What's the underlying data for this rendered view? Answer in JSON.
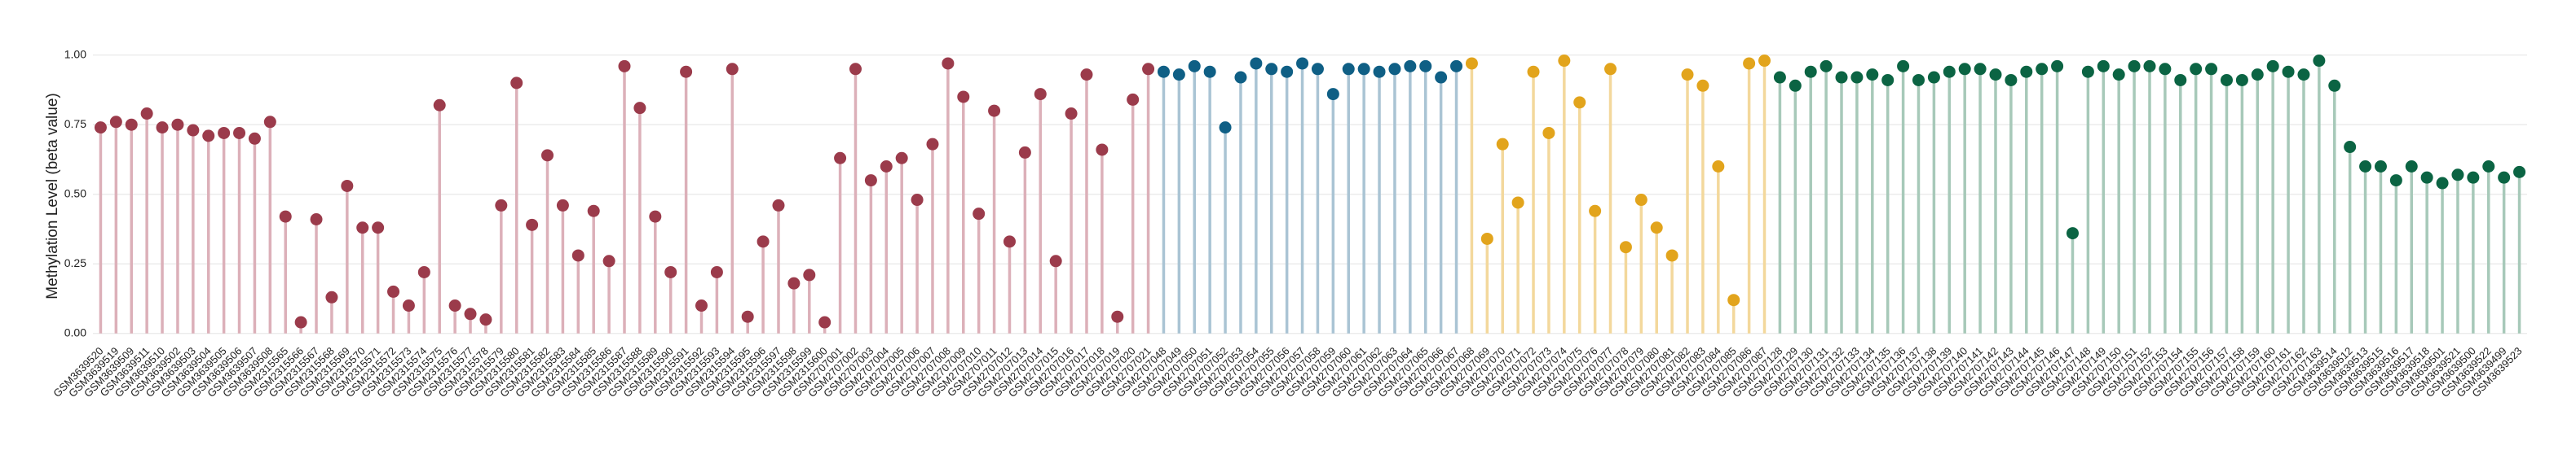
{
  "chart_data": {
    "type": "lollipop",
    "y_label": "Methylation Level (beta value)",
    "ylim": [
      -0.03,
      1.04
    ],
    "yticks": [
      {
        "value": 0,
        "label": "0.00"
      },
      {
        "value": 0.25,
        "label": "0.25"
      },
      {
        "value": 0.5,
        "label": "0.50"
      },
      {
        "value": 0.75,
        "label": "0.75"
      },
      {
        "value": 1,
        "label": "1.00"
      }
    ],
    "grid": true,
    "groups": [
      {
        "color": "#9b3b4b",
        "stem_color": "#dcb0b9",
        "categories": [
          "GSM3639520",
          "GSM3639519",
          "GSM3639509",
          "GSM3639511",
          "GSM3639510",
          "GSM3639502",
          "GSM3639503",
          "GSM3639504",
          "GSM3639505",
          "GSM3639506",
          "GSM3639507",
          "GSM3639508",
          "GSM2315565",
          "GSM2315566",
          "GSM2315567",
          "GSM2315568",
          "GSM2315569",
          "GSM2315570",
          "GSM2315571",
          "GSM2315572",
          "GSM2315573",
          "GSM2315574",
          "GSM2315575",
          "GSM2315576",
          "GSM2315577",
          "GSM2315578",
          "GSM2315579",
          "GSM2315580",
          "GSM2315581",
          "GSM2315582",
          "GSM2315583",
          "GSM2315584",
          "GSM2315585",
          "GSM2315586",
          "GSM2315587",
          "GSM2315588",
          "GSM2315589",
          "GSM2315590",
          "GSM2315591",
          "GSM2315592",
          "GSM2315593",
          "GSM2315594",
          "GSM2315595",
          "GSM2315596",
          "GSM2315597",
          "GSM2315598",
          "GSM2315599",
          "GSM2315600",
          "GSM2707001",
          "GSM2707002",
          "GSM2707003",
          "GSM2707004",
          "GSM2707005",
          "GSM2707006",
          "GSM2707007",
          "GSM2707008",
          "GSM2707009",
          "GSM2707010",
          "GSM2707011",
          "GSM2707012",
          "GSM2707013",
          "GSM2707014",
          "GSM2707015",
          "GSM2707016",
          "GSM2707017",
          "GSM2707018",
          "GSM2707019",
          "GSM2707020",
          "GSM2707021"
        ],
        "values": [
          0.74,
          0.76,
          0.75,
          0.79,
          0.74,
          0.75,
          0.73,
          0.71,
          0.72,
          0.72,
          0.7,
          0.76,
          0.42,
          0.04,
          0.41,
          0.13,
          0.53,
          0.38,
          0.38,
          0.15,
          0.1,
          0.22,
          0.82,
          0.1,
          0.07,
          0.05,
          0.46,
          0.9,
          0.39,
          0.64,
          0.46,
          0.28,
          0.44,
          0.26,
          0.96,
          0.81,
          0.42,
          0.22,
          0.94,
          0.1,
          0.22,
          0.95,
          0.06,
          0.33,
          0.46,
          0.18,
          0.21,
          0.04,
          0.63,
          0.95,
          0.55,
          0.6,
          0.63,
          0.48,
          0.68,
          0.97,
          0.85,
          0.43,
          0.8,
          0.33,
          0.65,
          0.86,
          0.26,
          0.79,
          0.93,
          0.66,
          0.06,
          0.84,
          0.95
        ]
      },
      {
        "color": "#0f5f85",
        "stem_color": "#aac4d4",
        "categories": [
          "GSM2707048",
          "GSM2707049",
          "GSM2707050",
          "GSM2707051",
          "GSM2707052",
          "GSM2707053",
          "GSM2707054",
          "GSM2707055",
          "GSM2707056",
          "GSM2707057",
          "GSM2707058",
          "GSM2707059",
          "GSM2707060",
          "GSM2707061",
          "GSM2707062",
          "GSM2707063",
          "GSM2707064",
          "GSM2707065",
          "GSM2707066",
          "GSM2707067"
        ],
        "values": [
          0.94,
          0.93,
          0.96,
          0.94,
          0.74,
          0.92,
          0.97,
          0.95,
          0.94,
          0.97,
          0.95,
          0.86,
          0.95,
          0.95,
          0.94,
          0.95,
          0.96,
          0.96,
          0.92,
          0.96
        ]
      },
      {
        "color": "#e2a41c",
        "stem_color": "#f3d89c",
        "categories": [
          "GSM2707068",
          "GSM2707069",
          "GSM2707070",
          "GSM2707071",
          "GSM2707072",
          "GSM2707073",
          "GSM2707074",
          "GSM2707075",
          "GSM2707076",
          "GSM2707077",
          "GSM2707078",
          "GSM2707079",
          "GSM2707080",
          "GSM2707081",
          "GSM2707082",
          "GSM2707083",
          "GSM2707084",
          "GSM2707085",
          "GSM2707086",
          "GSM2707087"
        ],
        "values": [
          0.97,
          0.34,
          0.68,
          0.47,
          0.94,
          0.72,
          0.98,
          0.83,
          0.44,
          0.95,
          0.31,
          0.48,
          0.38,
          0.28,
          0.93,
          0.89,
          0.6,
          0.12,
          0.97,
          0.98
        ]
      },
      {
        "color": "#0b6443",
        "stem_color": "#a7c9b9",
        "categories": [
          "GSM2707128",
          "GSM2707129",
          "GSM2707130",
          "GSM2707131",
          "GSM2707132",
          "GSM2707133",
          "GSM2707134",
          "GSM2707135",
          "GSM2707136",
          "GSM2707137",
          "GSM2707138",
          "GSM2707139",
          "GSM2707140",
          "GSM2707141",
          "GSM2707142",
          "GSM2707143",
          "GSM2707144",
          "GSM2707145",
          "GSM2707146",
          "GSM2707147",
          "GSM2707148",
          "GSM2707149",
          "GSM2707150",
          "GSM2707151",
          "GSM2707152",
          "GSM2707153",
          "GSM2707154",
          "GSM2707155",
          "GSM2707156",
          "GSM2707157",
          "GSM2707158",
          "GSM2707159",
          "GSM2707160",
          "GSM2707161",
          "GSM2707162",
          "GSM2707163",
          "GSM3639514",
          "GSM3639512",
          "GSM3639513",
          "GSM3639515",
          "GSM3639516",
          "GSM3639517",
          "GSM3639518",
          "GSM3639501",
          "GSM3639521",
          "GSM3639500",
          "GSM3639522",
          "GSM3639499",
          "GSM3639523"
        ],
        "values": [
          0.92,
          0.89,
          0.94,
          0.96,
          0.92,
          0.92,
          0.93,
          0.91,
          0.96,
          0.91,
          0.92,
          0.94,
          0.95,
          0.95,
          0.93,
          0.91,
          0.94,
          0.95,
          0.96,
          0.36,
          0.94,
          0.96,
          0.93,
          0.96,
          0.96,
          0.95,
          0.91,
          0.95,
          0.95,
          0.91,
          0.91,
          0.93,
          0.96,
          0.94,
          0.93,
          0.98,
          0.89,
          0.67,
          0.6,
          0.6,
          0.55,
          0.6,
          0.56,
          0.54,
          0.57,
          0.56,
          0.6,
          0.56,
          0.58
        ]
      }
    ]
  }
}
